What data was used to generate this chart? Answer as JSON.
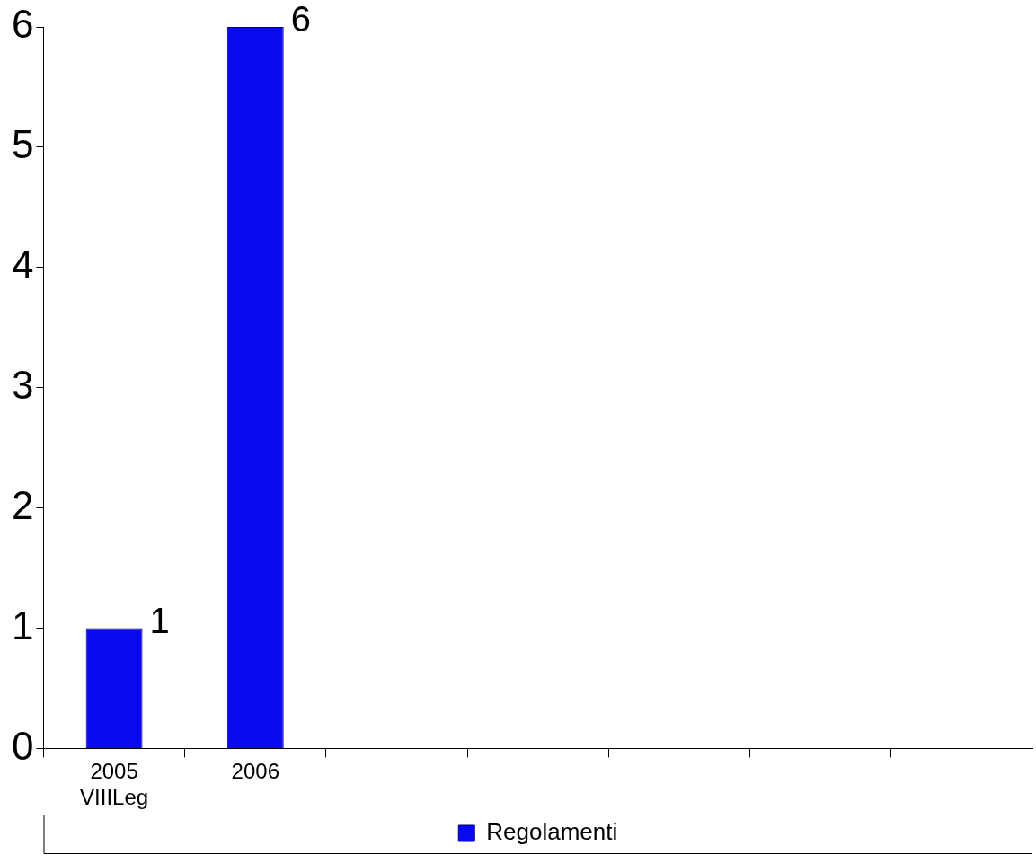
{
  "chart_data": {
    "type": "bar",
    "categories": [
      "2005\nVIIILeg",
      "2006",
      null,
      null,
      null,
      null,
      null
    ],
    "series": [
      {
        "name": "Regolamenti",
        "color": "#0a0af0",
        "values": [
          1,
          6,
          null,
          null,
          null,
          null,
          null
        ]
      }
    ],
    "ylim": [
      0,
      6
    ],
    "yticks": [
      0,
      1,
      2,
      3,
      4,
      5,
      6
    ],
    "grid": false,
    "legend": "bottom",
    "data_labels": true
  }
}
